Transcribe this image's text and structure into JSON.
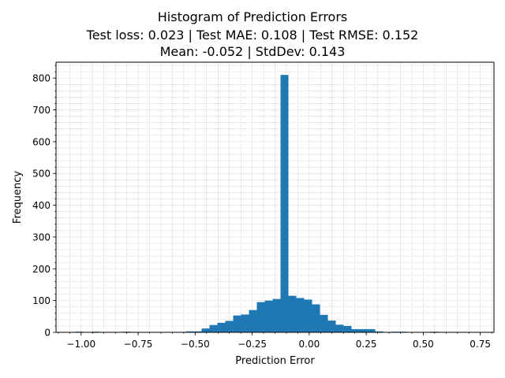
{
  "chart_data": {
    "type": "bar",
    "title_lines": [
      "Histogram of Prediction Errors",
      "Test loss: 0.023 | Test MAE: 0.108 | Test RMSE: 0.152",
      "Mean: -0.052 | StdDev: 0.143"
    ],
    "xlabel": "Prediction Error",
    "ylabel": "Frequency",
    "xlim": [
      -1.11,
      0.81
    ],
    "ylim": [
      0,
      850
    ],
    "x_ticks": [
      -1.0,
      -0.75,
      -0.5,
      -0.25,
      0.0,
      0.25,
      0.5,
      0.75
    ],
    "x_tick_labels": [
      "−1.00",
      "−0.75",
      "−0.50",
      "−0.25",
      "0.00",
      "0.25",
      "0.50",
      "0.75"
    ],
    "y_ticks": [
      0,
      100,
      200,
      300,
      400,
      500,
      600,
      700,
      800
    ],
    "y_tick_labels": [
      "0",
      "100",
      "200",
      "300",
      "400",
      "500",
      "600",
      "700",
      "800"
    ],
    "grid": true,
    "bar_color": "#1f77b4",
    "bin_start": -1.0253,
    "bin_width": 0.0346,
    "counts": [
      2,
      0,
      2,
      0,
      0,
      0,
      2,
      0,
      1,
      1,
      0,
      1,
      1,
      1,
      3,
      3,
      12,
      23,
      30,
      36,
      53,
      56,
      70,
      95,
      100,
      105,
      810,
      115,
      108,
      103,
      88,
      55,
      37,
      24,
      20,
      10,
      10,
      10,
      3,
      0,
      2,
      2,
      0,
      0,
      0,
      2,
      0,
      0,
      1,
      0
    ]
  }
}
